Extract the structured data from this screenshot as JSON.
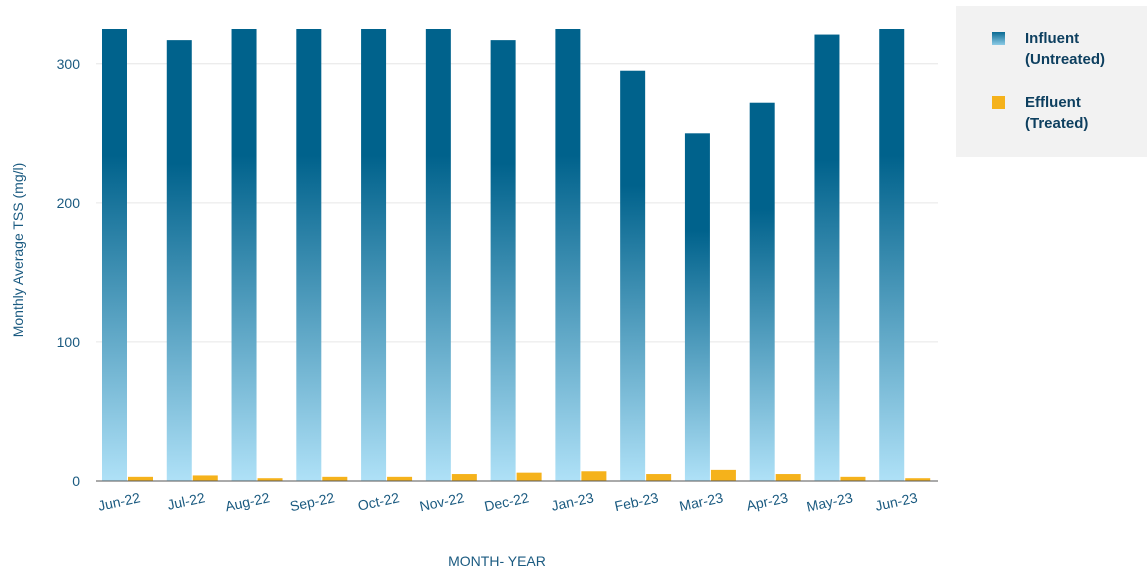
{
  "chart_data": {
    "type": "bar",
    "title": "",
    "xlabel": "MONTH- YEAR",
    "ylabel": "Monthly Average TSS (mg/l)",
    "ylim": [
      0,
      325
    ],
    "yticks": [
      0,
      100,
      200,
      300
    ],
    "grid": true,
    "legend_position": "top-right",
    "categories": [
      "Jun-22",
      "Jul-22",
      "Aug-22",
      "Sep-22",
      "Oct-22",
      "Nov-22",
      "Dec-22",
      "Jan-23",
      "Feb-23",
      "Mar-23",
      "Apr-23",
      "May-23",
      "Jun-23"
    ],
    "series": [
      {
        "name": "Influent (Untreated)",
        "color": "#00628c",
        "values": [
          325,
          317,
          325,
          325,
          325,
          325,
          317,
          325,
          295,
          250,
          272,
          321,
          325
        ]
      },
      {
        "name": "Effluent (Treated)",
        "color": "#f5b21b",
        "values": [
          3,
          4,
          2,
          3,
          3,
          5,
          6,
          7,
          5,
          8,
          5,
          3,
          2
        ]
      }
    ]
  },
  "legend": {
    "items": [
      {
        "line1": "Influent",
        "line2": "(Untreated)",
        "color": "#0a6a93"
      },
      {
        "line1": "Effluent",
        "line2": "(Treated)",
        "color": "#f5b21b"
      }
    ]
  }
}
